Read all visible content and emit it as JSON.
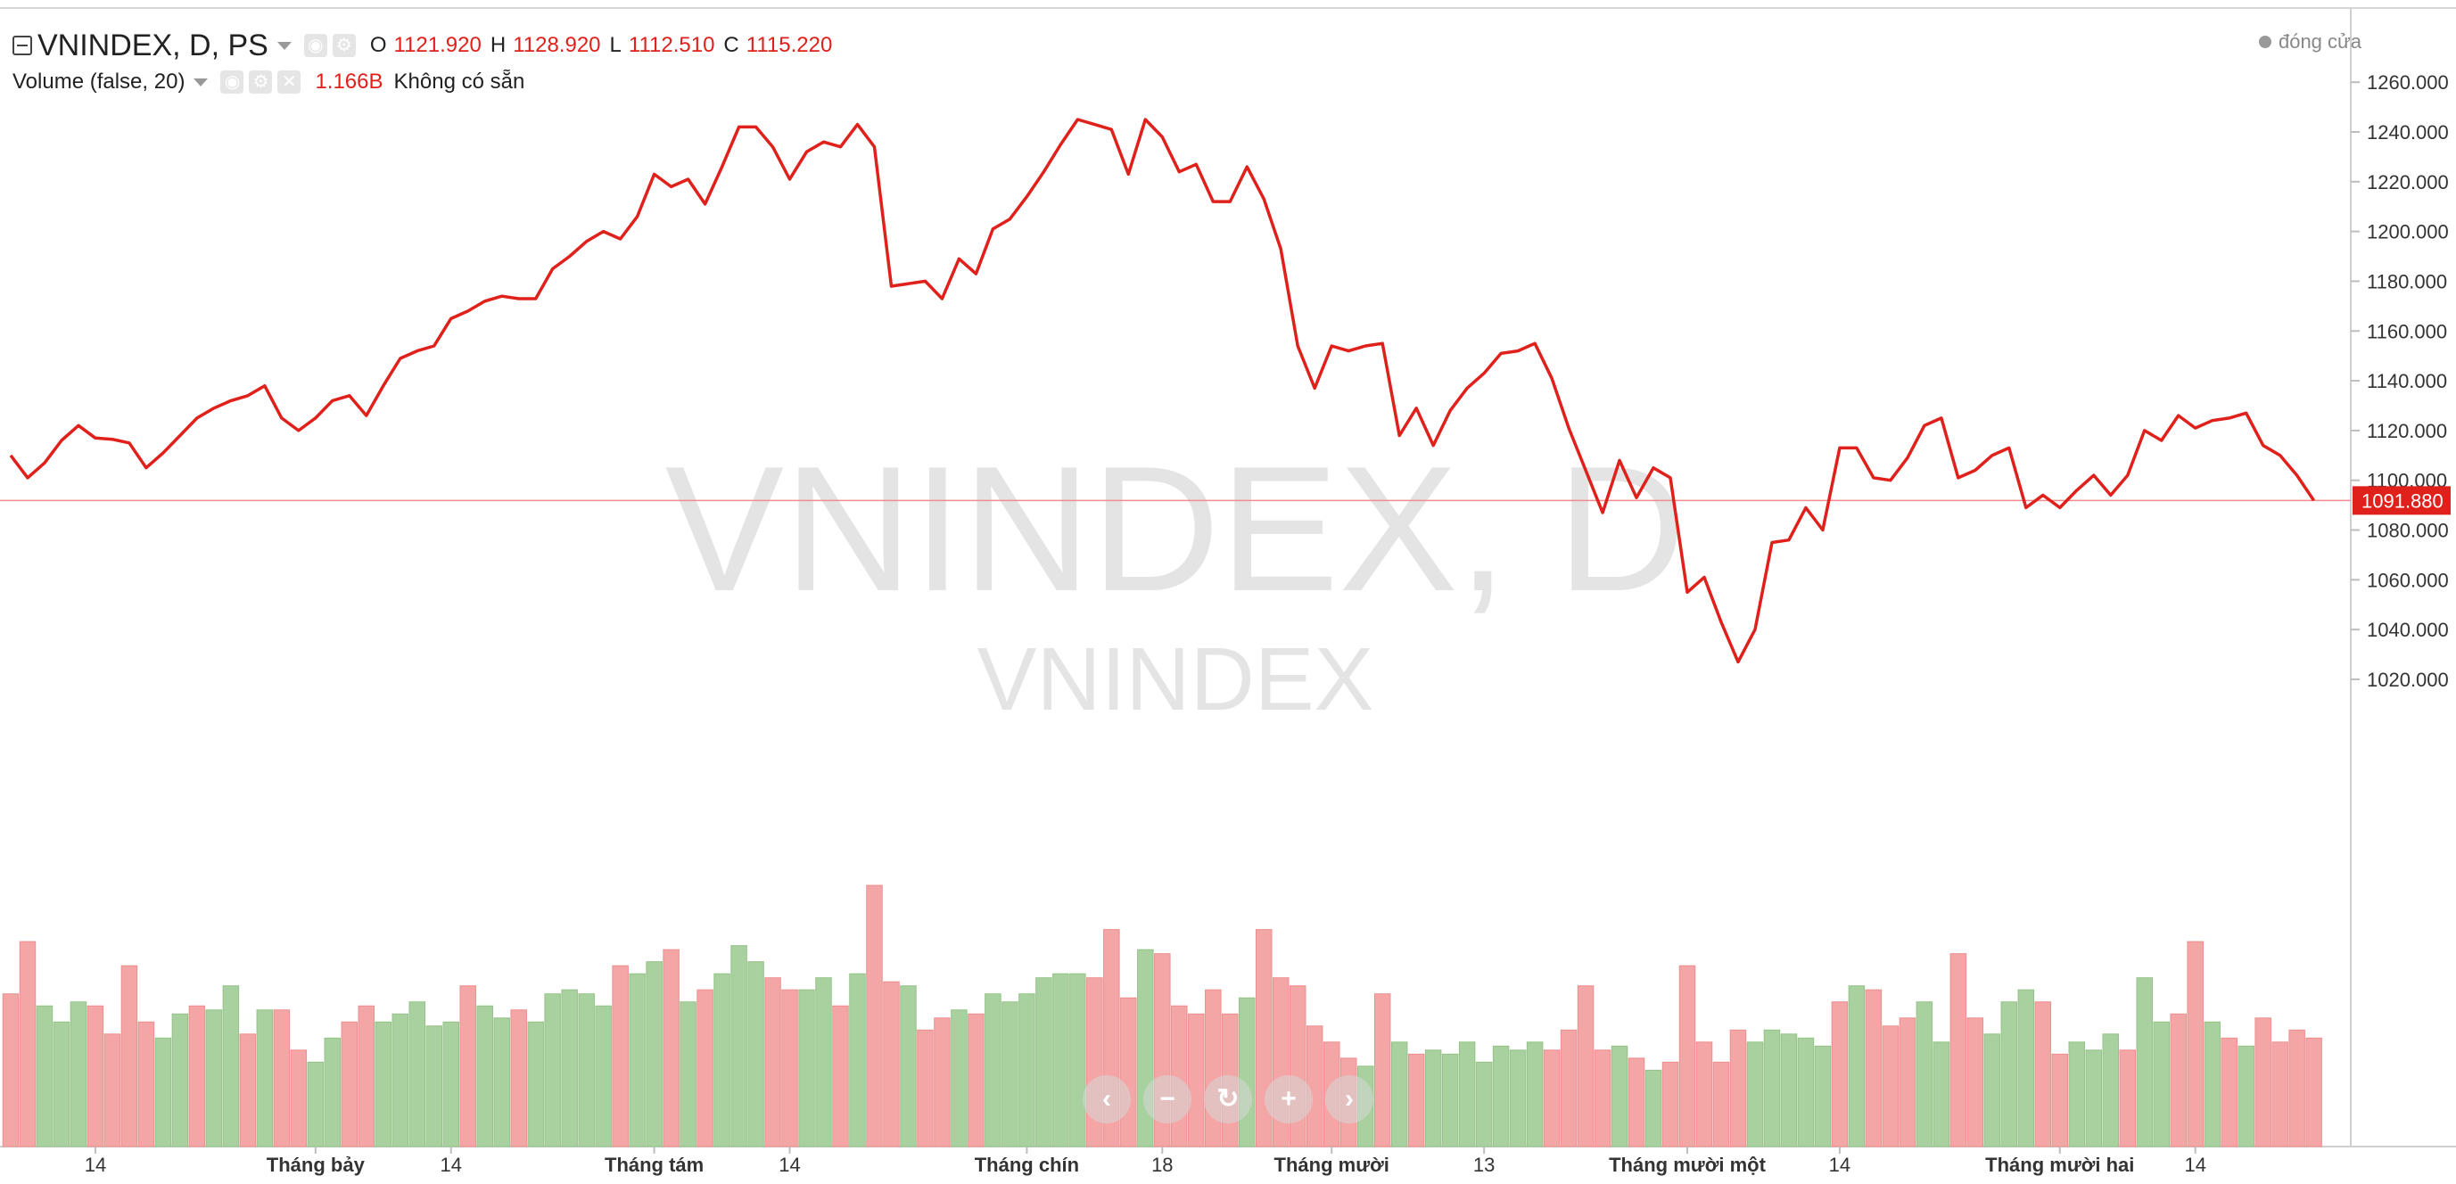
{
  "header": {
    "symbol": "VNINDEX, D, PS",
    "o_label": "O",
    "o_value": "1121.920",
    "h_label": "H",
    "h_value": "1128.920",
    "l_label": "L",
    "l_value": "1112.510",
    "c_label": "C",
    "c_value": "1115.220",
    "volume_label": "Volume (false, 20)",
    "volume_value": "1.166B",
    "volume_na": "Không có sẵn",
    "close_legend": "đóng cửa"
  },
  "watermark": {
    "title": "VNINDEX, D",
    "subtitle": "VNINDEX"
  },
  "icons": {
    "collapse": "minus-square-icon",
    "eye": "eye-icon",
    "settings": "gear-icon",
    "remove": "close-icon"
  },
  "colors": {
    "line": "#e0201b",
    "vol_up": "#a9d19f",
    "vol_down": "#f4a6a6",
    "last_price": "#e0201b"
  },
  "navigation": {
    "buttons": [
      {
        "name": "scroll-left-button",
        "icon": "chevron-left-icon",
        "glyph": "‹"
      },
      {
        "name": "zoom-out-button",
        "icon": "minus-icon",
        "glyph": "−"
      },
      {
        "name": "reset-button",
        "icon": "refresh-icon",
        "glyph": "↻"
      },
      {
        "name": "zoom-in-button",
        "icon": "plus-icon",
        "glyph": "+"
      },
      {
        "name": "scroll-right-button",
        "icon": "chevron-right-icon",
        "glyph": "›"
      }
    ]
  },
  "chart_data": {
    "type": "line",
    "title": "",
    "price_axis": {
      "range": [
        1006,
        1266
      ],
      "ticks": [
        1020,
        1040,
        1060,
        1080,
        1100,
        1120,
        1140,
        1160,
        1180,
        1200,
        1220,
        1240,
        1260
      ],
      "tick_labels": [
        "1020.000",
        "1040.000",
        "1060.000",
        "1080.000",
        "1100.000",
        "1120.000",
        "1140.000",
        "1160.000",
        "1180.000",
        "1200.000",
        "1220.000",
        "1240.000",
        "1260.000"
      ]
    },
    "last_price": 1091.88,
    "last_price_label": "1091.880",
    "x_ticks": [
      {
        "index": 5,
        "label": "14",
        "bold": false
      },
      {
        "index": 18,
        "label": "Tháng bảy",
        "bold": true
      },
      {
        "index": 26,
        "label": "14",
        "bold": false
      },
      {
        "index": 38,
        "label": "Tháng tám",
        "bold": true
      },
      {
        "index": 46,
        "label": "14",
        "bold": false
      },
      {
        "index": 60,
        "label": "Tháng chín",
        "bold": true
      },
      {
        "index": 68,
        "label": "18",
        "bold": false
      },
      {
        "index": 78,
        "label": "Tháng mười",
        "bold": true
      },
      {
        "index": 87,
        "label": "13",
        "bold": false
      },
      {
        "index": 99,
        "label": "Tháng mười một",
        "bold": true
      },
      {
        "index": 108,
        "label": "14",
        "bold": false
      },
      {
        "index": 121,
        "label": "Tháng mười hai",
        "bold": true
      },
      {
        "index": 129,
        "label": "14",
        "bold": false
      }
    ],
    "close": [
      1110,
      1101,
      1107,
      1116,
      1122,
      1117,
      1116.5,
      1115,
      1105,
      1111,
      1118,
      1125,
      1129,
      1132,
      1134,
      1138,
      1125,
      1120,
      1125,
      1132,
      1134,
      1126,
      1138,
      1149,
      1152,
      1154,
      1165,
      1168,
      1172,
      1174,
      1173,
      1173,
      1185,
      1190,
      1196,
      1200,
      1197,
      1206,
      1223,
      1218,
      1221,
      1211,
      1226,
      1242,
      1242,
      1234,
      1221,
      1232,
      1236,
      1234,
      1243,
      1234,
      1178,
      1179,
      1180,
      1173,
      1189,
      1183,
      1201,
      1205,
      1214,
      1224,
      1235,
      1245,
      1243,
      1241,
      1223,
      1245,
      1238,
      1224,
      1227,
      1212,
      1212,
      1226,
      1213,
      1193,
      1154,
      1137,
      1154,
      1152,
      1154,
      1155,
      1118,
      1129,
      1114,
      1128,
      1137,
      1143,
      1151,
      1152,
      1155,
      1141,
      1121,
      1104,
      1087,
      1108,
      1093,
      1105,
      1101,
      1055,
      1061,
      1043,
      1027,
      1040,
      1075,
      1076,
      1089,
      1080,
      1113,
      1113,
      1101,
      1100,
      1109,
      1122,
      1125,
      1101,
      1104,
      1110,
      1113,
      1089,
      1094,
      1089,
      1096,
      1102,
      1094,
      1102,
      1120,
      1116,
      1126,
      1121,
      1124,
      1125,
      1127,
      1114,
      1110,
      1102,
      1091.88
    ],
    "volume": {
      "series_name": "Volume",
      "range_top_units": 1075,
      "values": [
        1044,
        1057,
        1041,
        1037,
        1042,
        1041,
        1034,
        1051,
        1037,
        1033,
        1039,
        1041,
        1040,
        1046,
        1034,
        1040,
        1040,
        1030,
        1027,
        1033,
        1037,
        1041,
        1037,
        1039,
        1042,
        1036,
        1037,
        1046,
        1041,
        1038,
        1040,
        1037,
        1044,
        1045,
        1044,
        1041,
        1051,
        1049,
        1052,
        1055,
        1042,
        1045,
        1049,
        1056,
        1052,
        1048,
        1045,
        1045,
        1048,
        1041,
        1049,
        1071,
        1047,
        1046,
        1035,
        1038,
        1040,
        1039,
        1044,
        1042,
        1044,
        1048,
        1049,
        1049,
        1048,
        1060,
        1043,
        1055,
        1054,
        1041,
        1039,
        1045,
        1039,
        1043,
        1060,
        1048,
        1046,
        1036,
        1032,
        1028,
        1026,
        1044,
        1032,
        1029,
        1030,
        1029,
        1032,
        1027,
        1031,
        1030,
        1032,
        1030,
        1035,
        1046,
        1030,
        1031,
        1028,
        1025,
        1027,
        1051,
        1032,
        1027,
        1035,
        1032,
        1035,
        1034,
        1033,
        1031,
        1042,
        1046,
        1045,
        1036,
        1038,
        1042,
        1032,
        1054,
        1038,
        1034,
        1042,
        1045,
        1042,
        1029,
        1032,
        1030,
        1034,
        1030,
        1048,
        1037,
        1039,
        1057,
        1037,
        1033,
        1031,
        1038,
        1032,
        1035,
        1033
      ],
      "up": [
        0,
        0,
        1,
        1,
        1,
        0,
        0,
        0,
        0,
        1,
        1,
        0,
        1,
        1,
        0,
        1,
        0,
        0,
        1,
        1,
        0,
        0,
        1,
        1,
        1,
        1,
        1,
        0,
        1,
        1,
        0,
        1,
        1,
        1,
        1,
        1,
        0,
        1,
        1,
        0,
        1,
        0,
        1,
        1,
        1,
        0,
        0,
        1,
        1,
        0,
        1,
        0,
        0,
        1,
        0,
        0,
        1,
        0,
        1,
        1,
        1,
        1,
        1,
        1,
        0,
        0,
        0,
        1,
        0,
        0,
        0,
        0,
        0,
        1,
        0,
        0,
        0,
        0,
        0,
        0,
        1,
        0,
        1,
        0,
        1,
        1,
        1,
        1,
        1,
        1,
        1,
        0,
        0,
        0,
        0,
        1,
        0,
        1,
        0,
        0,
        0,
        0,
        0,
        1,
        1,
        1,
        1,
        1,
        0,
        1,
        0,
        0,
        0,
        1,
        1,
        0,
        0,
        1,
        1,
        1,
        0,
        0,
        1,
        1,
        1,
        0,
        1,
        1,
        0,
        0,
        1,
        0,
        1,
        0,
        0,
        0,
        0
      ]
    }
  }
}
